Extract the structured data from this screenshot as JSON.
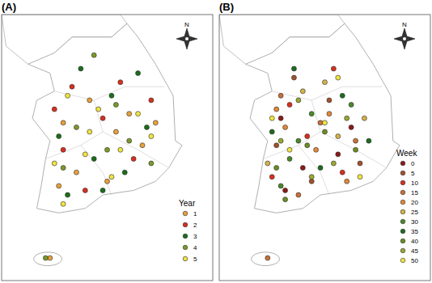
{
  "chart_data": [
    {
      "type": "scatter",
      "title": "(A)",
      "legend_title": "Year",
      "annotations": [
        "N"
      ],
      "xlim": [
        125.5,
        130.3
      ],
      "ylim": [
        32.9,
        38.8
      ],
      "tick_labels": false,
      "legend": "lower right",
      "series": [
        {
          "name": "1",
          "color": "#e8a03a",
          "x": [
            126.9,
            127.5,
            128.1,
            128.7,
            127.2,
            126.8,
            128.4,
            127.9,
            129.0,
            126.6
          ],
          "values": [
            36.4,
            36.9,
            36.2,
            35.9,
            35.3,
            35.0,
            36.6,
            35.1,
            36.4,
            33.4
          ]
        },
        {
          "name": "2",
          "color": "#d7301f",
          "x": [
            127.1,
            127.8,
            128.5,
            126.9,
            128.9,
            127.4,
            128.2,
            126.7
          ],
          "values": [
            37.2,
            36.5,
            35.6,
            35.8,
            36.9,
            34.9,
            37.3,
            36.7
          ]
        },
        {
          "name": "3",
          "color": "#1a6e1a",
          "x": [
            127.3,
            128.0,
            128.8,
            127.6,
            126.8,
            128.3,
            127.0,
            128.6,
            127.8
          ],
          "values": [
            37.6,
            37.0,
            36.3,
            35.6,
            36.1,
            35.3,
            34.8,
            37.5,
            34.9
          ]
        },
        {
          "name": "4",
          "color": "#7a9a2a",
          "x": [
            127.6,
            128.4,
            126.9,
            127.2,
            128.1,
            128.9,
            127.9,
            126.5
          ],
          "values": [
            37.9,
            36.0,
            35.4,
            36.3,
            36.8,
            35.5,
            35.8,
            33.4
          ]
        },
        {
          "name": "5",
          "color": "#f0e442",
          "x": [
            127.0,
            127.7,
            128.6,
            126.7,
            127.4,
            128.2,
            128.9,
            127.5,
            128.0,
            126.9
          ],
          "values": [
            37.0,
            36.7,
            36.6,
            35.5,
            35.7,
            35.8,
            36.1,
            36.2,
            35.2,
            34.6
          ]
        }
      ]
    },
    {
      "type": "scatter",
      "title": "(B)",
      "legend_title": "Week",
      "annotations": [
        "N"
      ],
      "xlim": [
        125.5,
        130.3
      ],
      "ylim": [
        32.9,
        38.8
      ],
      "tick_labels": false,
      "legend": "lower right",
      "series": [
        {
          "name": "0",
          "color": "#8b1a1a",
          "x": [
            126.9,
            127.4,
            128.2,
            127.0,
            128.5
          ],
          "values": [
            36.5,
            35.4,
            35.7,
            34.9,
            36.3
          ]
        },
        {
          "name": "5",
          "color": "#a0522d",
          "x": [
            127.2,
            126.8,
            128.0,
            127.6,
            128.7
          ],
          "values": [
            37.4,
            35.9,
            36.9,
            35.1,
            35.5
          ]
        },
        {
          "name": "10",
          "color": "#d7301f",
          "x": [
            127.5,
            126.7,
            128.3,
            127.1,
            128.1
          ],
          "values": [
            36.1,
            35.2,
            35.3,
            36.8,
            37.6
          ]
        },
        {
          "name": "15",
          "color": "#c8703a",
          "x": [
            126.9,
            127.8,
            128.6,
            127.3,
            126.6
          ],
          "values": [
            37.0,
            36.4,
            36.0,
            34.8,
            33.4
          ]
        },
        {
          "name": "20",
          "color": "#e0883a",
          "x": [
            127.0,
            128.4,
            127.7,
            126.8,
            128.0
          ],
          "values": [
            36.3,
            35.1,
            35.8,
            36.7,
            36.6
          ]
        },
        {
          "name": "25",
          "color": "#d4b24a",
          "x": [
            127.4,
            128.8,
            126.6,
            127.9,
            128.2
          ],
          "values": [
            37.1,
            36.5,
            35.5,
            37.3,
            36.1
          ]
        },
        {
          "name": "30",
          "color": "#4a8a2a",
          "x": [
            127.1,
            127.6,
            128.5,
            126.9,
            127.3
          ],
          "values": [
            35.6,
            36.6,
            36.8,
            35.0,
            36.0
          ]
        },
        {
          "name": "35",
          "color": "#1e6b1e",
          "x": [
            127.8,
            128.3,
            126.7,
            127.2,
            128.9
          ],
          "values": [
            35.4,
            37.0,
            36.2,
            37.6,
            36.0
          ]
        },
        {
          "name": "40",
          "color": "#6b8e23",
          "x": [
            126.8,
            127.5,
            128.6,
            127.9,
            127.0
          ],
          "values": [
            35.4,
            35.9,
            35.8,
            36.2,
            34.7
          ]
        },
        {
          "name": "45",
          "color": "#9aa832",
          "x": [
            127.3,
            128.1,
            126.9,
            128.4,
            127.6
          ],
          "values": [
            36.9,
            35.5,
            36.0,
            36.5,
            35.2
          ]
        },
        {
          "name": "50",
          "color": "#f0e442",
          "x": [
            127.1,
            127.9,
            128.7,
            126.7,
            128.2
          ],
          "values": [
            35.8,
            36.4,
            35.2,
            36.5,
            37.4
          ]
        }
      ]
    }
  ]
}
